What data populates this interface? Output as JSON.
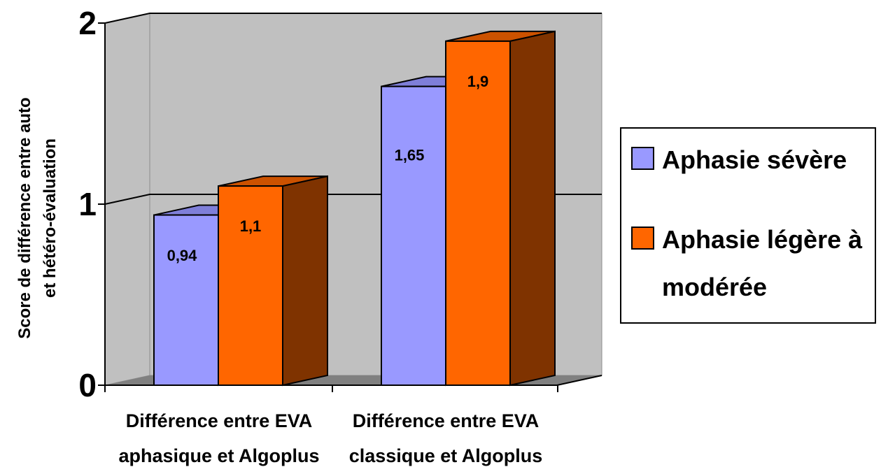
{
  "chart_data": {
    "type": "bar",
    "categories": [
      [
        "Différence entre EVA",
        "aphasique et Algoplus"
      ],
      [
        "Différence entre EVA",
        "classique et Algoplus"
      ]
    ],
    "series": [
      {
        "name": "Aphasie sévère",
        "values": [
          0.94,
          1.65
        ],
        "labels": [
          "0,94",
          "1,65"
        ],
        "color": "#9999FF",
        "side_color": "#4B4B99",
        "top_color": "#7F7FD9"
      },
      {
        "name": [
          "Aphasie légère à",
          "modérée"
        ],
        "values": [
          1.1,
          1.9
        ],
        "labels": [
          "1,1",
          "1,9"
        ],
        "color": "#FF6600",
        "side_color": "#7F3300",
        "top_color": "#CC5200"
      }
    ],
    "ylabel": [
      "Score de différence entre auto",
      "et hétéro-évaluation"
    ],
    "yticks": [
      "0",
      "1",
      "2"
    ],
    "ylim": [
      0,
      2
    ],
    "grid": true,
    "legend_position": "right",
    "wall_color": "#C0C0C0",
    "floor_color": "#808080"
  }
}
